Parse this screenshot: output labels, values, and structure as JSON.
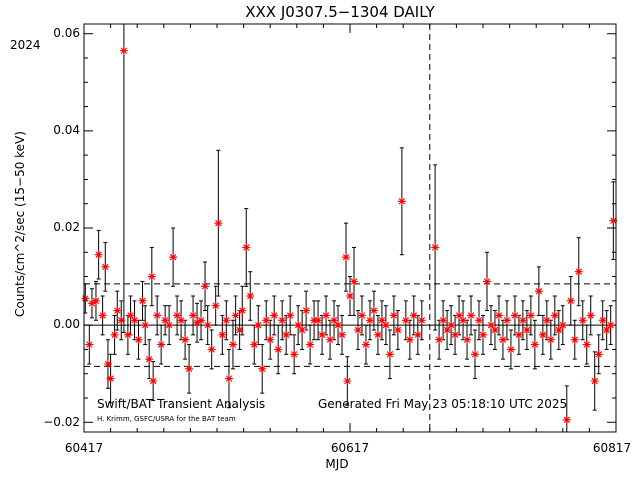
{
  "chart_data": {
    "type": "scatter",
    "title": "XXX J0307.5−1304 DAILY",
    "year_label": "2024",
    "xlabel": "MJD",
    "ylabel": "Counts/cm^2/sec (15−50 keV)",
    "xlim": [
      60417,
      60817
    ],
    "ylim": [
      -0.022,
      0.062
    ],
    "x_ticks": [
      "60417",
      "60617",
      "60817"
    ],
    "y_ticks": [
      "−0.02",
      "0.00",
      "0.02",
      "0.04",
      "0.06"
    ],
    "vertical_marker_mjd": 60677,
    "mean_level": 0.0,
    "upper_threshold": 0.0085,
    "lower_threshold": -0.0085,
    "annotations": {
      "left": "Swift/BAT Transient Analysis",
      "right": "Generated Fri May 23 05:18:10 UTC 2025",
      "credit": "H. Krimm, GSFC/USRA for the BAT team"
    },
    "series": [
      {
        "marker": "asterisk",
        "color": "#ff0000",
        "points": [
          {
            "x": 60418,
            "y": 0.0055,
            "err": 0.003
          },
          {
            "x": 60421,
            "y": -0.004,
            "err": 0.004
          },
          {
            "x": 60423,
            "y": 0.0045,
            "err": 0.003
          },
          {
            "x": 60426,
            "y": 0.005,
            "err": 0.004
          },
          {
            "x": 60428,
            "y": 0.0145,
            "err": 0.005
          },
          {
            "x": 60431,
            "y": 0.002,
            "err": 0.004
          },
          {
            "x": 60433,
            "y": 0.012,
            "err": 0.005
          },
          {
            "x": 60435,
            "y": -0.008,
            "err": 0.005
          },
          {
            "x": 60437,
            "y": -0.011,
            "err": 0.005
          },
          {
            "x": 60440,
            "y": -0.002,
            "err": 0.004
          },
          {
            "x": 60442,
            "y": 0.003,
            "err": 0.004
          },
          {
            "x": 60445,
            "y": 0.001,
            "err": 0.004
          },
          {
            "x": 60447,
            "y": 0.0565,
            "err": 0.058
          },
          {
            "x": 60450,
            "y": -0.002,
            "err": 0.004
          },
          {
            "x": 60452,
            "y": 0.002,
            "err": 0.004
          },
          {
            "x": 60455,
            "y": 0.001,
            "err": 0.004
          },
          {
            "x": 60458,
            "y": -0.003,
            "err": 0.004
          },
          {
            "x": 60461,
            "y": 0.005,
            "err": 0.004
          },
          {
            "x": 60463,
            "y": 0.0,
            "err": 0.004
          },
          {
            "x": 60466,
            "y": -0.007,
            "err": 0.004
          },
          {
            "x": 60468,
            "y": 0.01,
            "err": 0.006
          },
          {
            "x": 60469,
            "y": -0.0115,
            "err": 0.004
          },
          {
            "x": 60472,
            "y": 0.002,
            "err": 0.004
          },
          {
            "x": 60475,
            "y": -0.004,
            "err": 0.004
          },
          {
            "x": 60478,
            "y": 0.001,
            "err": 0.003
          },
          {
            "x": 60481,
            "y": 0.0,
            "err": 0.004
          },
          {
            "x": 60484,
            "y": 0.014,
            "err": 0.006
          },
          {
            "x": 60487,
            "y": 0.002,
            "err": 0.004
          },
          {
            "x": 60490,
            "y": 0.001,
            "err": 0.004
          },
          {
            "x": 60493,
            "y": -0.003,
            "err": 0.004
          },
          {
            "x": 60496,
            "y": -0.009,
            "err": 0.005
          },
          {
            "x": 60499,
            "y": 0.002,
            "err": 0.004
          },
          {
            "x": 60502,
            "y": 0.0005,
            "err": 0.004
          },
          {
            "x": 60505,
            "y": 0.001,
            "err": 0.004
          },
          {
            "x": 60508,
            "y": 0.008,
            "err": 0.005
          },
          {
            "x": 60510,
            "y": 0.0,
            "err": 0.004
          },
          {
            "x": 60513,
            "y": -0.005,
            "err": 0.004
          },
          {
            "x": 60516,
            "y": 0.004,
            "err": 0.004
          },
          {
            "x": 60518,
            "y": 0.021,
            "err": 0.015
          },
          {
            "x": 60521,
            "y": -0.002,
            "err": 0.004
          },
          {
            "x": 60524,
            "y": 0.001,
            "err": 0.004
          },
          {
            "x": 60526,
            "y": -0.011,
            "err": 0.006
          },
          {
            "x": 60529,
            "y": -0.004,
            "err": 0.005
          },
          {
            "x": 60531,
            "y": 0.002,
            "err": 0.004
          },
          {
            "x": 60534,
            "y": -0.001,
            "err": 0.004
          },
          {
            "x": 60536,
            "y": 0.003,
            "err": 0.005
          },
          {
            "x": 60539,
            "y": 0.016,
            "err": 0.008
          },
          {
            "x": 60542,
            "y": 0.006,
            "err": 0.005
          },
          {
            "x": 60545,
            "y": -0.004,
            "err": 0.004
          },
          {
            "x": 60548,
            "y": 0.0,
            "err": 0.004
          },
          {
            "x": 60551,
            "y": -0.009,
            "err": 0.005
          },
          {
            "x": 60554,
            "y": 0.001,
            "err": 0.004
          },
          {
            "x": 60557,
            "y": -0.003,
            "err": 0.004
          },
          {
            "x": 60560,
            "y": 0.002,
            "err": 0.004
          },
          {
            "x": 60563,
            "y": -0.005,
            "err": 0.005
          },
          {
            "x": 60566,
            "y": 0.001,
            "err": 0.004
          },
          {
            "x": 60569,
            "y": -0.002,
            "err": 0.004
          },
          {
            "x": 60572,
            "y": 0.002,
            "err": 0.004
          },
          {
            "x": 60575,
            "y": -0.006,
            "err": 0.004
          },
          {
            "x": 60578,
            "y": 0.0,
            "err": 0.004
          },
          {
            "x": 60581,
            "y": -0.001,
            "err": 0.004
          },
          {
            "x": 60584,
            "y": 0.003,
            "err": 0.004
          },
          {
            "x": 60587,
            "y": -0.004,
            "err": 0.004
          },
          {
            "x": 60590,
            "y": 0.001,
            "err": 0.004
          },
          {
            "x": 60593,
            "y": 0.001,
            "err": 0.004
          },
          {
            "x": 60596,
            "y": -0.002,
            "err": 0.004
          },
          {
            "x": 60599,
            "y": 0.002,
            "err": 0.004
          },
          {
            "x": 60602,
            "y": -0.003,
            "err": 0.004
          },
          {
            "x": 60605,
            "y": 0.001,
            "err": 0.004
          },
          {
            "x": 60608,
            "y": 0.0,
            "err": 0.004
          },
          {
            "x": 60611,
            "y": -0.002,
            "err": 0.004
          },
          {
            "x": 60614,
            "y": 0.014,
            "err": 0.007
          },
          {
            "x": 60615,
            "y": -0.0115,
            "err": 0.005
          },
          {
            "x": 60617,
            "y": 0.006,
            "err": 0.004
          },
          {
            "x": 60620,
            "y": 0.009,
            "err": 0.007
          },
          {
            "x": 60623,
            "y": -0.001,
            "err": 0.004
          },
          {
            "x": 60626,
            "y": 0.002,
            "err": 0.004
          },
          {
            "x": 60629,
            "y": -0.004,
            "err": 0.004
          },
          {
            "x": 60632,
            "y": 0.001,
            "err": 0.004
          },
          {
            "x": 60635,
            "y": 0.003,
            "err": 0.004
          },
          {
            "x": 60638,
            "y": -0.002,
            "err": 0.004
          },
          {
            "x": 60641,
            "y": 0.001,
            "err": 0.004
          },
          {
            "x": 60644,
            "y": 0.0,
            "err": 0.004
          },
          {
            "x": 60647,
            "y": -0.006,
            "err": 0.005
          },
          {
            "x": 60650,
            "y": 0.002,
            "err": 0.004
          },
          {
            "x": 60653,
            "y": -0.001,
            "err": 0.004
          },
          {
            "x": 60656,
            "y": 0.0255,
            "err": 0.011
          },
          {
            "x": 60659,
            "y": 0.001,
            "err": 0.004
          },
          {
            "x": 60662,
            "y": -0.003,
            "err": 0.004
          },
          {
            "x": 60665,
            "y": 0.002,
            "err": 0.004
          },
          {
            "x": 60668,
            "y": -0.002,
            "err": 0.004
          },
          {
            "x": 60671,
            "y": 0.001,
            "err": 0.004
          },
          {
            "x": 60681,
            "y": 0.016,
            "err": 0.017
          },
          {
            "x": 60684,
            "y": -0.003,
            "err": 0.004
          },
          {
            "x": 60687,
            "y": 0.001,
            "err": 0.004
          },
          {
            "x": 60690,
            "y": -0.001,
            "err": 0.004
          },
          {
            "x": 60693,
            "y": 0.0,
            "err": 0.004
          },
          {
            "x": 60696,
            "y": -0.002,
            "err": 0.004
          },
          {
            "x": 60699,
            "y": 0.002,
            "err": 0.004
          },
          {
            "x": 60702,
            "y": 0.001,
            "err": 0.004
          },
          {
            "x": 60705,
            "y": -0.003,
            "err": 0.004
          },
          {
            "x": 60708,
            "y": 0.002,
            "err": 0.004
          },
          {
            "x": 60711,
            "y": -0.006,
            "err": 0.005
          },
          {
            "x": 60714,
            "y": 0.001,
            "err": 0.004
          },
          {
            "x": 60717,
            "y": -0.002,
            "err": 0.004
          },
          {
            "x": 60720,
            "y": 0.009,
            "err": 0.006
          },
          {
            "x": 60723,
            "y": 0.0,
            "err": 0.004
          },
          {
            "x": 60726,
            "y": -0.001,
            "err": 0.004
          },
          {
            "x": 60729,
            "y": 0.002,
            "err": 0.004
          },
          {
            "x": 60732,
            "y": -0.003,
            "err": 0.004
          },
          {
            "x": 60735,
            "y": 0.001,
            "err": 0.004
          },
          {
            "x": 60738,
            "y": -0.005,
            "err": 0.004
          },
          {
            "x": 60741,
            "y": 0.002,
            "err": 0.004
          },
          {
            "x": 60744,
            "y": -0.002,
            "err": 0.004
          },
          {
            "x": 60747,
            "y": 0.001,
            "err": 0.004
          },
          {
            "x": 60750,
            "y": -0.001,
            "err": 0.004
          },
          {
            "x": 60753,
            "y": 0.002,
            "err": 0.004
          },
          {
            "x": 60756,
            "y": -0.004,
            "err": 0.005
          },
          {
            "x": 60759,
            "y": 0.007,
            "err": 0.005
          },
          {
            "x": 60762,
            "y": -0.002,
            "err": 0.004
          },
          {
            "x": 60765,
            "y": 0.001,
            "err": 0.004
          },
          {
            "x": 60768,
            "y": -0.003,
            "err": 0.004
          },
          {
            "x": 60771,
            "y": 0.002,
            "err": 0.004
          },
          {
            "x": 60774,
            "y": -0.001,
            "err": 0.004
          },
          {
            "x": 60777,
            "y": 0.0,
            "err": 0.004
          },
          {
            "x": 60780,
            "y": -0.0195,
            "err": 0.007
          },
          {
            "x": 60783,
            "y": 0.005,
            "err": 0.005
          },
          {
            "x": 60786,
            "y": -0.003,
            "err": 0.004
          },
          {
            "x": 60789,
            "y": 0.011,
            "err": 0.007
          },
          {
            "x": 60792,
            "y": 0.001,
            "err": 0.004
          },
          {
            "x": 60795,
            "y": -0.004,
            "err": 0.004
          },
          {
            "x": 60798,
            "y": 0.002,
            "err": 0.004
          },
          {
            "x": 60801,
            "y": -0.0115,
            "err": 0.006
          },
          {
            "x": 60804,
            "y": -0.006,
            "err": 0.004
          },
          {
            "x": 60807,
            "y": 0.001,
            "err": 0.004
          },
          {
            "x": 60810,
            "y": -0.001,
            "err": 0.004
          },
          {
            "x": 60813,
            "y": 0.0,
            "err": 0.004
          },
          {
            "x": 60815,
            "y": 0.0215,
            "err": 0.008
          }
        ]
      }
    ]
  }
}
